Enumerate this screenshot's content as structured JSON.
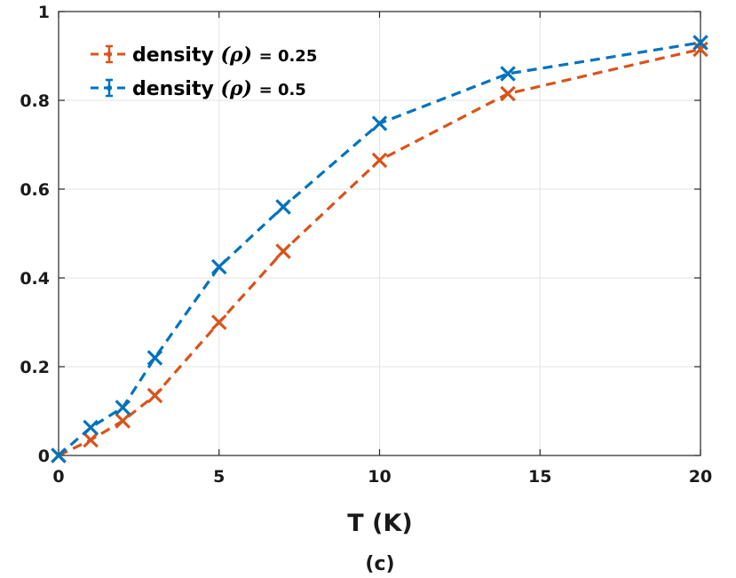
{
  "chart_data": {
    "type": "line",
    "title": "",
    "xlabel": "T (K)",
    "ylabel": "",
    "caption": "(c)",
    "xlim": [
      0,
      20
    ],
    "ylim": [
      0,
      1
    ],
    "x_ticks": [
      0,
      5,
      10,
      15,
      20
    ],
    "y_ticks": [
      0,
      0.2,
      0.4,
      0.6,
      0.8,
      1
    ],
    "x_tick_labels": [
      "0",
      "5",
      "10",
      "15",
      "20"
    ],
    "y_tick_labels": [
      "0",
      "0.2",
      "0.4",
      "0.6",
      "0.8",
      "1"
    ],
    "grid": true,
    "legend_position": "top-left",
    "series": [
      {
        "name": "density (ρ) = 0.25",
        "label_word": "density",
        "label_symbol": "(ρ)",
        "label_value": "= 0.25",
        "color": "#D95319",
        "x": [
          0,
          1,
          2,
          3,
          5,
          7,
          10,
          14,
          20
        ],
        "y": [
          0.0,
          0.035,
          0.078,
          0.135,
          0.3,
          0.46,
          0.665,
          0.815,
          0.915
        ]
      },
      {
        "name": "density (ρ) = 0.5",
        "label_word": "density",
        "label_symbol": "(ρ)",
        "label_value": "= 0.5",
        "color": "#0072BD",
        "x": [
          0,
          1,
          2,
          3,
          5,
          7,
          10,
          14,
          20
        ],
        "y": [
          0.0,
          0.063,
          0.108,
          0.22,
          0.425,
          0.56,
          0.748,
          0.86,
          0.93
        ]
      }
    ]
  }
}
